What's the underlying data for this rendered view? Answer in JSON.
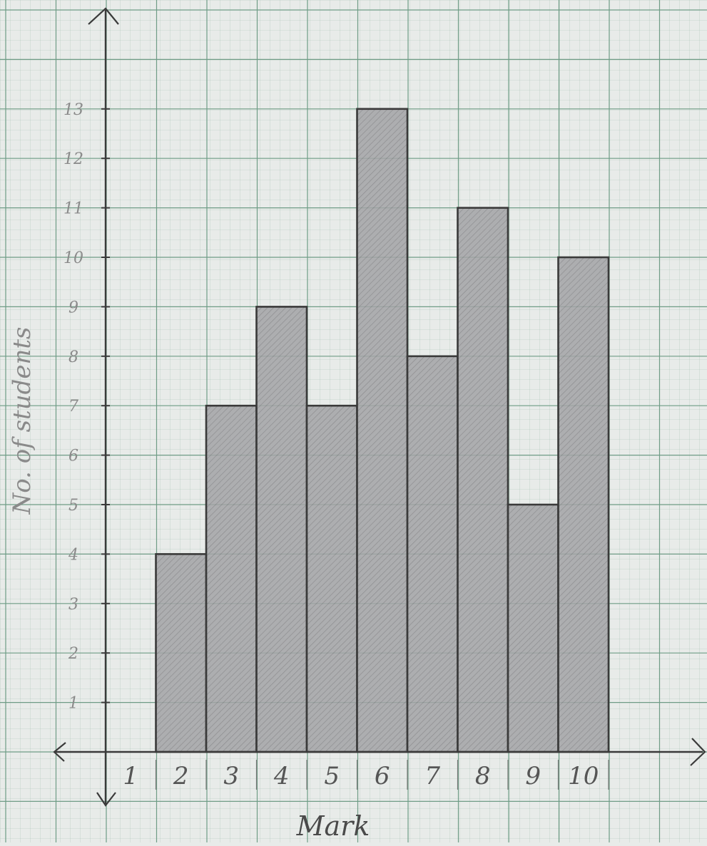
{
  "chart_data": {
    "type": "bar",
    "categories": [
      "1",
      "2",
      "3",
      "4",
      "5",
      "6",
      "7",
      "8",
      "9",
      "10"
    ],
    "values": [
      0,
      4,
      7,
      9,
      7,
      13,
      8,
      11,
      5,
      10
    ],
    "title": "",
    "xlabel": "Mark",
    "ylabel": "No. of students",
    "ylim": [
      0,
      13
    ],
    "y_ticks": [
      "1",
      "2",
      "3",
      "4",
      "5",
      "6",
      "7",
      "8",
      "9",
      "10",
      "11",
      "12",
      "13"
    ],
    "grid": true,
    "legend": "none"
  },
  "colors": {
    "paper": "#e8ebe9",
    "grid_major": "#6f9c86",
    "grid_minor": "#a9c4b6",
    "pencil": "#3a3a3a",
    "bar_fill": "#9a9a9c",
    "pencil_light": "#8a8a8a"
  }
}
